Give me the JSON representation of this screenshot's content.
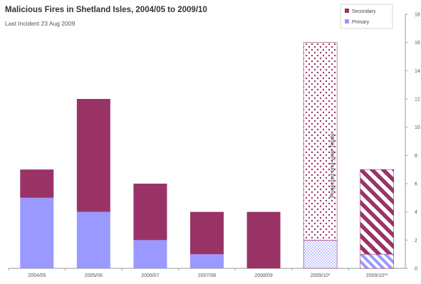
{
  "chart_data": {
    "type": "bar",
    "stacked": true,
    "title": "Malicious Fires in Shetland Isles, 2004/05 to 2009/10",
    "subtitle": "Last Incident 23 Aug 2009",
    "xlabel": "",
    "ylabel": "",
    "categories": [
      "2004/05",
      "2005/06",
      "2006/07",
      "2007/08",
      "2008/09",
      "2009/10*",
      "2009/10**"
    ],
    "series": [
      {
        "name": "Primary",
        "values": [
          5,
          4,
          2,
          1,
          0,
          2,
          1
        ],
        "color": "#9999ff"
      },
      {
        "name": "Secondary",
        "values": [
          2,
          8,
          4,
          3,
          4,
          14,
          6
        ],
        "color": "#993366"
      }
    ],
    "patterns": [
      "solid",
      "solid",
      "solid",
      "solid",
      "solid",
      "dotted",
      "striped"
    ],
    "yticks": [
      0,
      2,
      4,
      6,
      8,
      10,
      12,
      14,
      16,
      18
    ],
    "ylim": [
      0,
      18
    ],
    "y_axis_side": "right",
    "grid": false,
    "legend": {
      "placement": "top-right",
      "order": [
        "Secondary",
        "Primary"
      ]
    },
    "annotations": [
      {
        "text": "Projected end-year Totals",
        "category": "2009/10*",
        "orientation": "vertical"
      }
    ]
  }
}
